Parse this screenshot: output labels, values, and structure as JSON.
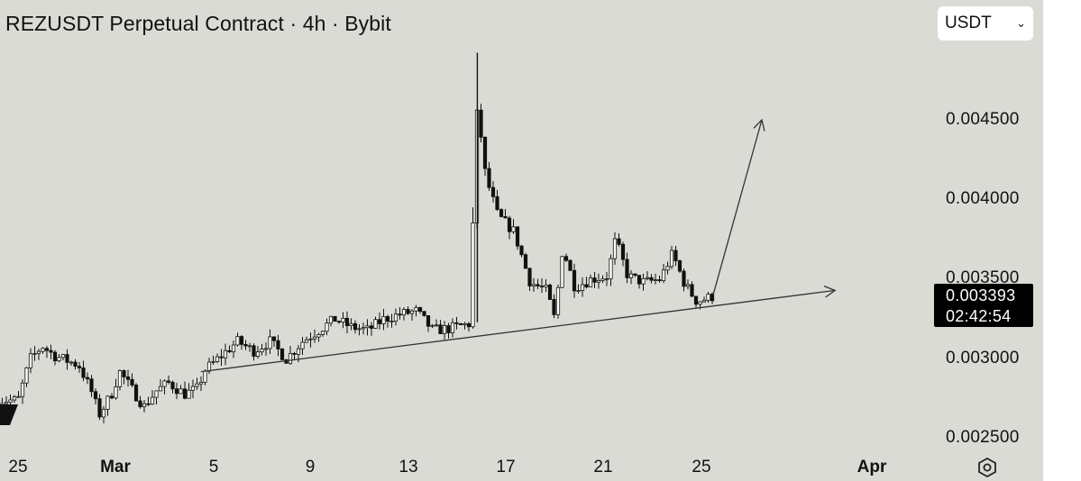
{
  "header": {
    "title": "REZUSDT Perpetual Contract · 4h · Bybit"
  },
  "currency_select": {
    "value": "USDT"
  },
  "price_axis": {
    "labels": [
      "0.004500",
      "0.004000",
      "0.003500",
      "0.003000",
      "0.002500"
    ]
  },
  "last_price": {
    "price": "0.003393",
    "countdown": "02:42:54"
  },
  "time_axis": {
    "labels": [
      {
        "text": "25",
        "bold": false
      },
      {
        "text": "Mar",
        "bold": true
      },
      {
        "text": "5",
        "bold": false
      },
      {
        "text": "9",
        "bold": false
      },
      {
        "text": "13",
        "bold": false
      },
      {
        "text": "17",
        "bold": false
      },
      {
        "text": "21",
        "bold": false
      },
      {
        "text": "25",
        "bold": false
      },
      {
        "text": "Apr",
        "bold": true
      }
    ]
  },
  "colors": {
    "background": "#dbdbd6",
    "candle": "#111111",
    "up_fill": "#ffffff"
  },
  "chart_data": {
    "type": "candlestick",
    "title": "REZUSDT Perpetual Contract · 4h · Bybit",
    "interval": "4h",
    "ylim": [
      0.00243,
      0.00497
    ],
    "y_ticks": [
      0.0045,
      0.004,
      0.0035,
      0.003,
      0.0025
    ],
    "x_ticks": [
      "25",
      "Mar",
      "5",
      "9",
      "13",
      "17",
      "21",
      "25",
      "Apr"
    ],
    "grid": false,
    "last_price": 0.003393,
    "close_path": [
      [
        "Feb 25 00:00",
        0.00274
      ],
      [
        "Feb 25 12:00",
        0.003
      ],
      [
        "Feb 26 00:00",
        0.00308
      ],
      [
        "Feb 26 12:00",
        0.00302
      ],
      [
        "Feb 27 00:00",
        0.00299
      ],
      [
        "Feb 27 12:00",
        0.00296
      ],
      [
        "Feb 28 00:00",
        0.0028
      ],
      [
        "Feb 28 08:00",
        0.00265
      ],
      [
        "Feb 28 20:00",
        0.00278
      ],
      [
        "Mar 1 04:00",
        0.00292
      ],
      [
        "Mar 1 16:00",
        0.00281
      ],
      [
        "Mar 2 04:00",
        0.0027
      ],
      [
        "Mar 2 16:00",
        0.0028
      ],
      [
        "Mar 3 04:00",
        0.00285
      ],
      [
        "Mar 3 20:00",
        0.00278
      ],
      [
        "Mar 4 08:00",
        0.00281
      ],
      [
        "Mar 4 16:00",
        0.00293
      ],
      [
        "Mar 5 08:00",
        0.00302
      ],
      [
        "Mar 6 00:00",
        0.00311
      ],
      [
        "Mar 6 16:00",
        0.00305
      ],
      [
        "Mar 7 08:00",
        0.00311
      ],
      [
        "Mar 8 00:00",
        0.003
      ],
      [
        "Mar 8 16:00",
        0.00311
      ],
      [
        "Mar 9 08:00",
        0.00318
      ],
      [
        "Mar 10 00:00",
        0.00325
      ],
      [
        "Mar 10 16:00",
        0.0032
      ],
      [
        "Mar 11 08:00",
        0.00318
      ],
      [
        "Mar 12 00:00",
        0.00325
      ],
      [
        "Mar 12 16:00",
        0.00328
      ],
      [
        "Mar 13 08:00",
        0.0033
      ],
      [
        "Mar 14 00:00",
        0.00318
      ],
      [
        "Mar 14 16:00",
        0.00319
      ],
      [
        "Mar 15 12:00",
        0.00322
      ],
      [
        "Mar 15 20:00",
        0.0046
      ],
      [
        "Mar 16 04:00",
        0.00415
      ],
      [
        "Mar 16 16:00",
        0.0039
      ],
      [
        "Mar 17 08:00",
        0.0038
      ],
      [
        "Mar 18 00:00",
        0.00348
      ],
      [
        "Mar 18 16:00",
        0.00343
      ],
      [
        "Mar 19 00:00",
        0.00325
      ],
      [
        "Mar 19 08:00",
        0.0037
      ],
      [
        "Mar 19 20:00",
        0.00345
      ],
      [
        "Mar 20 12:00",
        0.0035
      ],
      [
        "Mar 21 04:00",
        0.00352
      ],
      [
        "Mar 21 12:00",
        0.00375
      ],
      [
        "Mar 22 00:00",
        0.00352
      ],
      [
        "Mar 22 16:00",
        0.00348
      ],
      [
        "Mar 23 08:00",
        0.0035
      ],
      [
        "Mar 23 20:00",
        0.00366
      ],
      [
        "Mar 24 08:00",
        0.00347
      ],
      [
        "Mar 24 20:00",
        0.00336
      ],
      [
        "Mar 25 12:00",
        0.003393
      ]
    ],
    "annotations": [
      {
        "type": "trendline",
        "from": [
          "Mar 4 12:00",
          0.00292
        ],
        "to": [
          "Mar 30 12:00",
          0.00343
        ],
        "arrow": true
      },
      {
        "type": "arrow",
        "from": [
          "Mar 25 12:00",
          0.0034
        ],
        "to": [
          "Mar 27 12:00",
          0.0045
        ]
      }
    ]
  }
}
